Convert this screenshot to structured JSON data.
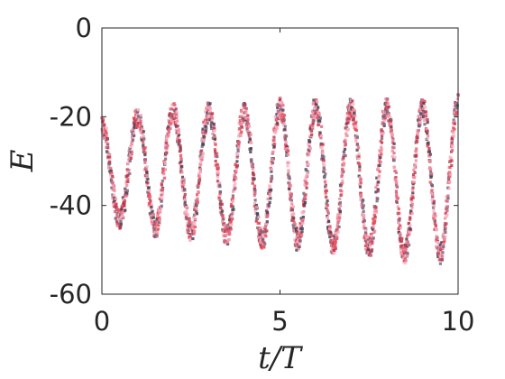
{
  "chart_data": {
    "type": "line",
    "title": "",
    "xlabel": "t/T",
    "ylabel": "E",
    "xlim": [
      0,
      10
    ],
    "ylim": [
      -60,
      0
    ],
    "xticks": [
      "0",
      "5",
      "10"
    ],
    "yticks": [
      "0",
      "-20",
      "-40",
      "-60"
    ],
    "grid": false,
    "legend": "none",
    "series": [
      {
        "color": "#e8505b",
        "x": [
          0,
          0.5,
          1,
          1.5,
          2,
          2.5,
          3,
          3.5,
          4,
          4.5,
          5,
          5.5,
          6,
          6.5,
          7,
          7.5,
          8,
          8.5,
          9,
          9.5,
          10
        ],
        "values": [
          -22,
          -43,
          -20,
          -45,
          -19,
          -46,
          -19,
          -47,
          -19,
          -48,
          -18,
          -48,
          -18,
          -49,
          -18,
          -50,
          -18,
          -51,
          -18,
          -51,
          -17
        ]
      }
    ],
    "marker_colors": [
      "#e8505b",
      "#f08a9a",
      "#c23a4e",
      "#f7b6c8",
      "#4a4458",
      "#d96b86",
      "#f4a3b3",
      "#7a6a80"
    ]
  }
}
